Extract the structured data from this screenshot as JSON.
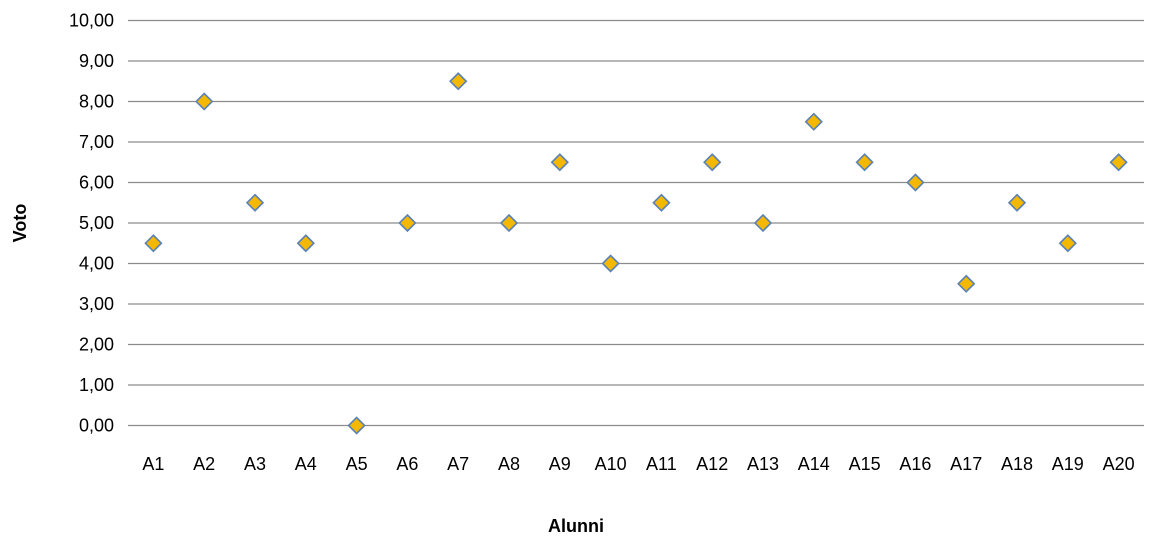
{
  "chart_data": {
    "type": "scatter",
    "title": "",
    "xlabel": "Alunni",
    "ylabel": "Voto",
    "categories": [
      "A1",
      "A2",
      "A3",
      "A4",
      "A5",
      "A6",
      "A7",
      "A8",
      "A9",
      "A10",
      "A11",
      "A12",
      "A13",
      "A14",
      "A15",
      "A16",
      "A17",
      "A18",
      "A19",
      "A20"
    ],
    "values": [
      4.5,
      8,
      5.5,
      4.5,
      0,
      5,
      8.5,
      5,
      6.5,
      4,
      5.5,
      6.5,
      5,
      7.5,
      6.5,
      6,
      3.5,
      5.5,
      4.5,
      6.5
    ],
    "ylim": [
      0,
      10
    ],
    "yticks": [
      "0,00",
      "1,00",
      "2,00",
      "3,00",
      "4,00",
      "5,00",
      "6,00",
      "7,00",
      "8,00",
      "9,00",
      "10,00"
    ],
    "grid": true,
    "marker": "diamond",
    "colors": {
      "marker_fill": "#F5B800",
      "marker_stroke": "#5B82B5",
      "grid": "#8c8c8c"
    }
  }
}
